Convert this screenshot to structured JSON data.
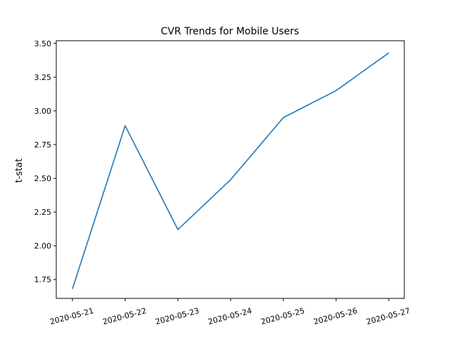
{
  "chart_data": {
    "type": "line",
    "title": "CVR Trends for Mobile Users",
    "xlabel": "",
    "ylabel": "t-stat",
    "x": [
      "2020-05-21",
      "2020-05-22",
      "2020-05-23",
      "2020-05-24",
      "2020-05-25",
      "2020-05-26",
      "2020-05-27"
    ],
    "series": [
      {
        "values": [
          1.68,
          2.89,
          2.12,
          2.49,
          2.95,
          3.15,
          3.43
        ],
        "color": "#1f77b4"
      }
    ],
    "yticks": [
      "1.75",
      "2.00",
      "2.25",
      "2.50",
      "2.75",
      "3.00",
      "3.25",
      "3.50"
    ],
    "ylim": [
      1.61,
      3.52
    ],
    "grid": false,
    "legend": "none"
  }
}
